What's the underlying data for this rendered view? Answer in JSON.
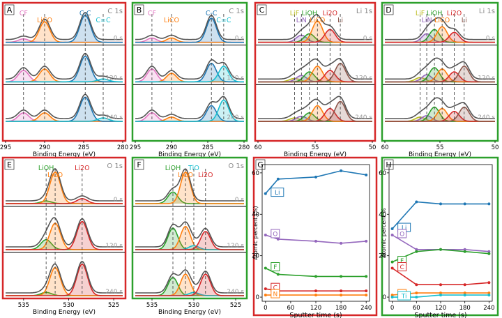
{
  "chart_data": [
    {
      "type": "line",
      "panel": "A",
      "title": "C 1s",
      "xlabel": "Binding Energy (eV)",
      "xlim": [
        295,
        280
      ],
      "ticks": [
        295,
        290,
        285,
        280
      ],
      "border_color": "#d62728",
      "times": [
        "0 s",
        "120 s",
        "240 s"
      ],
      "peaks": [
        {
          "label": "CF",
          "center": 292.7,
          "color": "#e377c2"
        },
        {
          "label": "LiCO",
          "center": 290.0,
          "color": "#ff7f0e"
        },
        {
          "label": "C-C",
          "center": 284.8,
          "color": "#1f77b4"
        },
        {
          "label": "C=C",
          "center": 282.5,
          "color": "#17becf"
        }
      ],
      "amps": [
        [
          0.12,
          0.72,
          0.95,
          0.0
        ],
        [
          0.4,
          0.45,
          0.9,
          0.1
        ],
        [
          0.3,
          0.3,
          0.85,
          0.12
        ]
      ]
    },
    {
      "type": "line",
      "panel": "B",
      "title": "C 1s",
      "xlabel": "Binding Energy (eV)",
      "xlim": [
        295,
        280
      ],
      "ticks": [
        295,
        290,
        285,
        280
      ],
      "border_color": "#2ca02c",
      "times": [
        "0 s",
        "120 s",
        "240 s"
      ],
      "peaks": [
        {
          "label": "CF",
          "center": 292.7,
          "color": "#e377c2"
        },
        {
          "label": "LiCO",
          "center": 290.0,
          "color": "#ff7f0e"
        },
        {
          "label": "C-C",
          "center": 284.5,
          "color": "#1f77b4"
        },
        {
          "label": "C=C",
          "center": 282.8,
          "color": "#17becf"
        }
      ],
      "amps": [
        [
          0.15,
          0.15,
          0.85,
          0.0
        ],
        [
          0.45,
          0.3,
          0.65,
          0.55
        ],
        [
          0.3,
          0.15,
          0.55,
          0.75
        ]
      ]
    },
    {
      "type": "line",
      "panel": "C",
      "title": "Li 1s",
      "xlabel": "Binding Energy (eV)",
      "xlim": [
        60,
        50
      ],
      "ticks": [
        60,
        55,
        50
      ],
      "border_color": "#d62728",
      "times": [
        "0 s",
        "120 s",
        "240 s"
      ],
      "peaks": [
        {
          "label": "LiF",
          "center": 56.8,
          "color": "#bcbd22"
        },
        {
          "label": "LiN",
          "center": 56.2,
          "color": "#9467bd"
        },
        {
          "label": "LiOH",
          "center": 55.5,
          "color": "#2ca02c"
        },
        {
          "label": "LiCO",
          "center": 54.8,
          "color": "#ff7f0e"
        },
        {
          "label": "Li2O",
          "center": 53.7,
          "color": "#d62728"
        },
        {
          "label": "Li",
          "center": 52.8,
          "color": "#8c564b"
        }
      ],
      "amps": [
        [
          0.0,
          0.25,
          0.3,
          0.75,
          0.45,
          0.0
        ],
        [
          0.12,
          0.22,
          0.35,
          0.55,
          0.4,
          0.65
        ],
        [
          0.12,
          0.18,
          0.3,
          0.55,
          0.45,
          0.7
        ]
      ]
    },
    {
      "type": "line",
      "panel": "D",
      "title": "Li 1s",
      "xlabel": "Binding Energy (eV)",
      "xlim": [
        60,
        50
      ],
      "ticks": [
        60,
        55,
        50
      ],
      "border_color": "#2ca02c",
      "times": [
        "0 s",
        "120 s",
        "240 s"
      ],
      "peaks": [
        {
          "label": "LiF",
          "center": 56.8,
          "color": "#bcbd22"
        },
        {
          "label": "LiN",
          "center": 56.2,
          "color": "#9467bd"
        },
        {
          "label": "LiOH",
          "center": 55.5,
          "color": "#2ca02c"
        },
        {
          "label": "LiCO",
          "center": 54.8,
          "color": "#ff7f0e"
        },
        {
          "label": "Li2O",
          "center": 53.7,
          "color": "#d62728"
        },
        {
          "label": "Li",
          "center": 52.8,
          "color": "#8c564b"
        }
      ],
      "amps": [
        [
          0.0,
          0.3,
          0.45,
          0.55,
          0.35,
          0.0
        ],
        [
          0.15,
          0.25,
          0.5,
          0.45,
          0.35,
          0.55
        ],
        [
          0.15,
          0.2,
          0.5,
          0.45,
          0.35,
          0.5
        ]
      ]
    },
    {
      "type": "line",
      "panel": "E",
      "title": "O 1s",
      "xlabel": "Binding Energy (eV)",
      "xlim": [
        537,
        524
      ],
      "ticks": [
        535,
        530,
        525
      ],
      "border_color": "#d62728",
      "times": [
        "0 s",
        "120 s",
        "240 s"
      ],
      "peaks": [
        {
          "label": "LiOH",
          "center": 532.5,
          "color": "#2ca02c"
        },
        {
          "label": "LiCO",
          "center": 531.5,
          "color": "#ff7f0e"
        },
        {
          "label": "Li2O",
          "center": 528.5,
          "color": "#d62728"
        }
      ],
      "amps": [
        [
          0.08,
          0.95,
          0.15
        ],
        [
          0.3,
          0.8,
          0.85
        ],
        [
          0.1,
          0.85,
          0.95
        ]
      ]
    },
    {
      "type": "line",
      "panel": "F",
      "title": "O 1s",
      "xlabel": "Binding Energy (eV)",
      "xlim": [
        537,
        524
      ],
      "ticks": [
        535,
        530,
        525
      ],
      "border_color": "#2ca02c",
      "times": [
        "0 s",
        "120 s",
        "240 s"
      ],
      "peaks": [
        {
          "label": "LiOH",
          "center": 532.5,
          "color": "#2ca02c"
        },
        {
          "label": "LiCO",
          "center": 531.0,
          "color": "#ff7f0e"
        },
        {
          "label": "TiO",
          "center": 530.0,
          "color": "#17becf"
        },
        {
          "label": "Li2O",
          "center": 528.6,
          "color": "#d62728"
        }
      ],
      "amps": [
        [
          0.35,
          0.95,
          0.0,
          0.0
        ],
        [
          0.65,
          0.7,
          0.12,
          0.55
        ],
        [
          0.55,
          0.65,
          0.1,
          0.65
        ]
      ]
    },
    {
      "type": "line",
      "panel": "G",
      "xlabel": "Sputter time (s)",
      "ylabel": "Atomic percent (%)",
      "xlim": [
        -8,
        248
      ],
      "ylim": [
        -2,
        64
      ],
      "xticks": [
        0,
        60,
        120,
        180,
        240
      ],
      "yticks": [
        0,
        20,
        40,
        60
      ],
      "border_color": "#d62728",
      "x": [
        0,
        30,
        120,
        180,
        240
      ],
      "series": [
        {
          "name": "Li",
          "color": "#1f77b4",
          "values": [
            50,
            57,
            58,
            61,
            59
          ]
        },
        {
          "name": "O",
          "color": "#9467bd",
          "values": [
            30,
            28,
            27,
            26,
            27
          ]
        },
        {
          "name": "F",
          "color": "#2ca02c",
          "values": [
            14,
            11,
            10,
            10,
            10
          ]
        },
        {
          "name": "C",
          "color": "#d62728",
          "values": [
            4,
            3,
            3,
            3,
            3
          ]
        },
        {
          "name": "N",
          "color": "#ff7f0e",
          "values": [
            1,
            1,
            1,
            1,
            1
          ]
        }
      ]
    },
    {
      "type": "line",
      "panel": "H",
      "xlabel": "Sputter time (s)",
      "ylabel": "Atomic percent %",
      "xlim": [
        -8,
        248
      ],
      "ylim": [
        -2,
        64
      ],
      "xticks": [
        0,
        60,
        120,
        180,
        240
      ],
      "yticks": [
        0,
        20,
        40,
        60
      ],
      "border_color": "#2ca02c",
      "x": [
        0,
        60,
        120,
        180,
        240
      ],
      "series": [
        {
          "name": "Li",
          "color": "#1f77b4",
          "values": [
            33,
            46,
            45,
            45,
            45
          ]
        },
        {
          "name": "O",
          "color": "#9467bd",
          "values": [
            30,
            23,
            23,
            23,
            22
          ]
        },
        {
          "name": "F",
          "color": "#2ca02c",
          "values": [
            17,
            22,
            23,
            22,
            21
          ]
        },
        {
          "name": "C",
          "color": "#d62728",
          "values": [
            14,
            6,
            6,
            6,
            7
          ]
        },
        {
          "name": "N",
          "color": "#ff7f0e",
          "values": [
            1,
            2,
            2,
            2,
            2
          ]
        },
        {
          "name": "Ti",
          "color": "#17becf",
          "values": [
            0,
            0,
            1,
            1,
            1
          ]
        }
      ]
    }
  ]
}
